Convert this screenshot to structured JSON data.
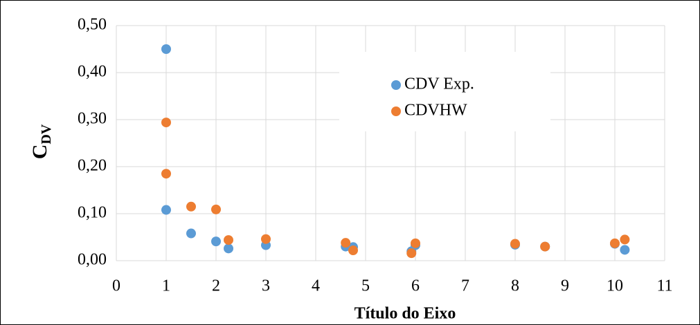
{
  "chart_data": {
    "type": "scatter",
    "x_label": "Título do Eixo",
    "y_label": "C",
    "y_label_subscript": "DV",
    "xlim": [
      0,
      11
    ],
    "xticks": [
      0,
      1,
      2,
      3,
      4,
      5,
      6,
      7,
      8,
      9,
      10,
      11
    ],
    "ylim": [
      0,
      0.5
    ],
    "yticks": [
      {
        "value": 0,
        "label": "0,00"
      },
      {
        "value": 0.1,
        "label": "0,10"
      },
      {
        "value": 0.2,
        "label": "0,20"
      },
      {
        "value": 0.3,
        "label": "0,30"
      },
      {
        "value": 0.4,
        "label": "0,40"
      },
      {
        "value": 0.5,
        "label": "0,50"
      }
    ],
    "grid": true,
    "legend": "upper center",
    "series": [
      {
        "name": "CDV Exp.",
        "color": "#5b9bd5",
        "x": [
          1,
          1,
          1.5,
          2,
          2.25,
          3,
          4.6,
          4.75,
          5.92,
          6,
          8,
          8.6,
          10,
          10.2
        ],
        "values": [
          0.45,
          0.108,
          0.058,
          0.041,
          0.026,
          0.033,
          0.03,
          0.029,
          0.02,
          0.033,
          0.034,
          0.03,
          0.036,
          0.023
        ]
      },
      {
        "name": "CDVHW",
        "color": "#ed7d31",
        "x": [
          1,
          1,
          1.5,
          2,
          2.25,
          3,
          4.6,
          4.75,
          5.92,
          6,
          8,
          8.6,
          10,
          10.2
        ],
        "values": [
          0.294,
          0.185,
          0.115,
          0.109,
          0.044,
          0.046,
          0.038,
          0.022,
          0.016,
          0.037,
          0.036,
          0.03,
          0.037,
          0.045
        ]
      }
    ]
  }
}
